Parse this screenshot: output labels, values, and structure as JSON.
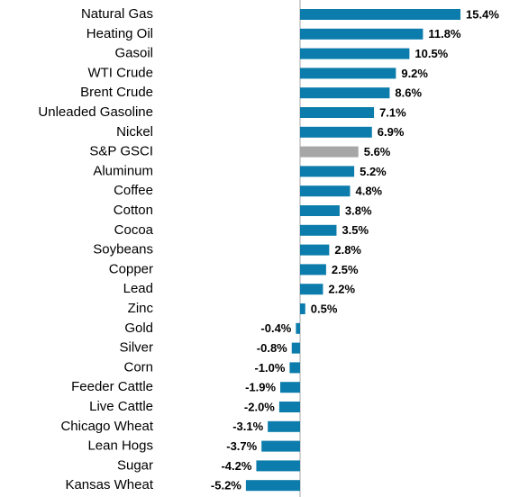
{
  "chart_data": {
    "type": "bar",
    "orientation": "horizontal",
    "categories": [
      "Natural Gas",
      "Heating Oil",
      "Gasoil",
      "WTI Crude",
      "Brent Crude",
      "Unleaded Gasoline",
      "Nickel",
      "S&P GSCI",
      "Aluminum",
      "Coffee",
      "Cotton",
      "Cocoa",
      "Soybeans",
      "Copper",
      "Lead",
      "Zinc",
      "Gold",
      "Silver",
      "Corn",
      "Feeder Cattle",
      "Live Cattle",
      "Chicago Wheat",
      "Lean Hogs",
      "Sugar",
      "Kansas Wheat"
    ],
    "values": [
      15.4,
      11.8,
      10.5,
      9.2,
      8.6,
      7.1,
      6.9,
      5.6,
      5.2,
      4.8,
      3.8,
      3.5,
      2.8,
      2.5,
      2.2,
      0.5,
      -0.4,
      -0.8,
      -1.0,
      -1.9,
      -2.0,
      -3.1,
      -3.7,
      -4.2,
      -5.2
    ],
    "value_labels": [
      "15.4%",
      "11.8%",
      "10.5%",
      "9.2%",
      "8.6%",
      "7.1%",
      "6.9%",
      "5.6%",
      "5.2%",
      "4.8%",
      "3.8%",
      "3.5%",
      "2.8%",
      "2.5%",
      "2.2%",
      "0.5%",
      "-0.4%",
      "-0.8%",
      "-1.0%",
      "-1.9%",
      "-2.0%",
      "-3.1%",
      "-3.7%",
      "-4.2%",
      "-5.2%"
    ],
    "colors": [
      "#0b7cab",
      "#0b7cab",
      "#0b7cab",
      "#0b7cab",
      "#0b7cab",
      "#0b7cab",
      "#0b7cab",
      "#a6a6a6",
      "#0b7cab",
      "#0b7cab",
      "#0b7cab",
      "#0b7cab",
      "#0b7cab",
      "#0b7cab",
      "#0b7cab",
      "#0b7cab",
      "#0b7cab",
      "#0b7cab",
      "#0b7cab",
      "#0b7cab",
      "#0b7cab",
      "#0b7cab",
      "#0b7cab",
      "#0b7cab",
      "#0b7cab"
    ]
  }
}
